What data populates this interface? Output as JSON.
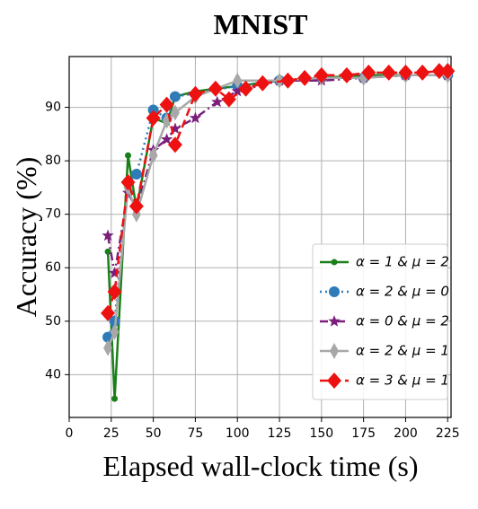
{
  "chart_data": {
    "type": "line",
    "title": "MNIST",
    "x_label": "Elapsed wall-clock time (s)",
    "y_label": "Accuracy (%)",
    "xlim": [
      0,
      227
    ],
    "ylim": [
      32,
      99.5
    ],
    "xticks": [
      0,
      25,
      50,
      75,
      100,
      125,
      150,
      175,
      200,
      225
    ],
    "yticks": [
      40,
      50,
      60,
      70,
      80,
      90
    ],
    "grid": true,
    "legend": "lower right",
    "series": [
      {
        "name": "α = 1 & μ = 2",
        "color": "#1a7f1a",
        "dash": "solid",
        "marker": "dot",
        "x": [
          23,
          27,
          35,
          40,
          50,
          58,
          63,
          75,
          100,
          125,
          150,
          175,
          200,
          225
        ],
        "values": [
          63,
          35.5,
          81,
          71,
          88,
          87,
          92,
          93,
          94,
          95,
          95.5,
          96,
          96,
          96
        ]
      },
      {
        "name": "α = 2 & μ = 0",
        "color": "#2e7bb8",
        "dash": "dotted",
        "marker": "circle",
        "x": [
          23,
          27,
          35,
          40,
          50,
          58,
          63,
          100,
          125,
          150,
          175,
          200,
          225
        ],
        "values": [
          47,
          50,
          76,
          77.5,
          89.5,
          88,
          92,
          94,
          95,
          95.5,
          95.5,
          96,
          96
        ]
      },
      {
        "name": "α = 0 & μ = 2",
        "color": "#7b1f7b",
        "dash": "dashdot",
        "marker": "star",
        "x": [
          23,
          27,
          35,
          40,
          50,
          58,
          63,
          75,
          88,
          100,
          125,
          150,
          175,
          200,
          225
        ],
        "values": [
          66,
          59,
          74,
          71,
          82,
          84,
          86,
          88,
          91,
          93,
          95,
          95,
          95.5,
          96,
          96
        ]
      },
      {
        "name": "α = 2 & μ = 1",
        "color": "#a8a8a8",
        "dash": "solid",
        "marker": "thin_diamond",
        "x": [
          23,
          27,
          35,
          40,
          50,
          58,
          63,
          75,
          100,
          125,
          150,
          175,
          200,
          225
        ],
        "values": [
          45,
          48,
          75,
          70,
          81,
          87.5,
          89,
          92,
          95,
          95,
          95.5,
          95.5,
          96,
          96
        ]
      },
      {
        "name": "α = 3 & μ = 1",
        "color": "#ee1111",
        "dash": "dashed",
        "marker": "diamond",
        "x": [
          23,
          27,
          35,
          40,
          50,
          58,
          63,
          75,
          87,
          95,
          105,
          115,
          130,
          140,
          150,
          165,
          178,
          190,
          200,
          210,
          220,
          225
        ],
        "values": [
          51.5,
          55.5,
          76,
          71.5,
          88,
          90.5,
          83,
          92.5,
          93.5,
          91.5,
          93.5,
          94.5,
          95,
          95.5,
          96,
          96,
          96.5,
          96.5,
          96.5,
          96.5,
          96.8,
          96.8
        ]
      }
    ]
  }
}
